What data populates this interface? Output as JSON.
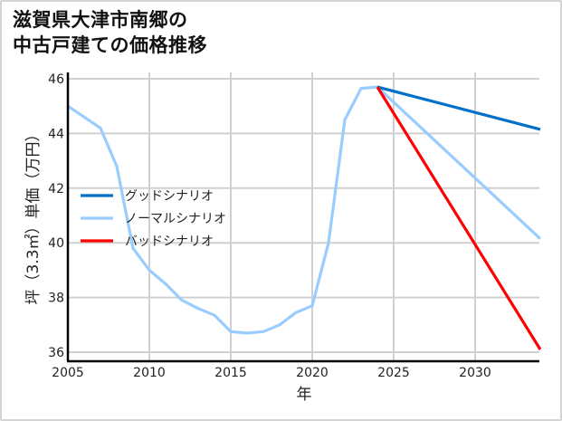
{
  "chart_data": {
    "type": "line",
    "title": "滋賀県大津市南郷の\n中古戸建ての価格推移",
    "title_lines": [
      "滋賀県大津市南郷の",
      "中古戸建ての価格推移"
    ],
    "xlabel": "年",
    "ylabel": "坪（3.3㎡）単価（万円）",
    "xlim": [
      2005,
      2034
    ],
    "ylim": [
      35.7,
      46
    ],
    "x_ticks": [
      2005,
      2010,
      2015,
      2020,
      2025,
      2030
    ],
    "y_ticks": [
      36,
      38,
      40,
      42,
      44,
      46
    ],
    "grid": true,
    "legend_position": "left-middle",
    "series": [
      {
        "name": "グッドシナリオ",
        "color": "#0070c8",
        "x": [
          2024,
          2034
        ],
        "values": [
          45.7,
          44.15
        ]
      },
      {
        "name": "ノーマルシナリオ",
        "color": "#99ccff",
        "x": [
          2005,
          2006,
          2007,
          2008,
          2009,
          2010,
          2011,
          2012,
          2013,
          2014,
          2015,
          2016,
          2017,
          2018,
          2019,
          2020,
          2021,
          2022,
          2023,
          2024,
          2034
        ],
        "values": [
          45.0,
          44.6,
          44.2,
          42.8,
          39.8,
          39.0,
          38.5,
          37.9,
          37.6,
          37.35,
          36.75,
          36.7,
          36.75,
          37.0,
          37.45,
          37.7,
          40.0,
          44.5,
          45.65,
          45.7,
          40.15
        ]
      },
      {
        "name": "バッドシナリオ",
        "color": "#ff0000",
        "x": [
          2024,
          2034
        ],
        "values": [
          45.7,
          36.1
        ]
      }
    ]
  }
}
